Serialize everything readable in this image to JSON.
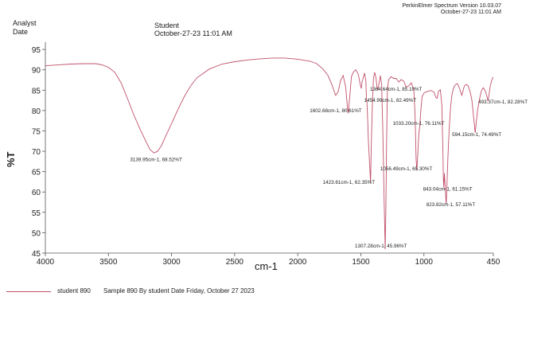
{
  "header": {
    "left_line1": "Analyst",
    "left_line2": "Date",
    "center_line1": "Student",
    "center_line2": "October-27-23 11:01 AM",
    "right_line1": "PerkinElmer Spectrum Version 10.03.07",
    "right_line2": "October-27-23 11:01 AM"
  },
  "chart_data": {
    "type": "line",
    "ylabel": "%T",
    "xlabel": "cm-1",
    "xlim": [
      4000,
      450
    ],
    "ylim": [
      45,
      96
    ],
    "x_ticks": [
      {
        "value": 4000,
        "label": "4000"
      },
      {
        "value": 3500,
        "label": "3500"
      },
      {
        "value": 3000,
        "label": "3000"
      },
      {
        "value": 2500,
        "label": "2500"
      },
      {
        "value": 2000,
        "label": "2000"
      },
      {
        "value": 1500,
        "label": "1500"
      },
      {
        "value": 1000,
        "label": "1000"
      },
      {
        "value": 450,
        "label": "450"
      }
    ],
    "y_ticks": [
      {
        "value": 95,
        "label": "95"
      },
      {
        "value": 90,
        "label": "90"
      },
      {
        "value": 85,
        "label": "85"
      },
      {
        "value": 80,
        "label": "80"
      },
      {
        "value": 75,
        "label": "75"
      },
      {
        "value": 70,
        "label": "70"
      },
      {
        "value": 65,
        "label": "65"
      },
      {
        "value": 60,
        "label": "60"
      },
      {
        "value": 55,
        "label": "55"
      },
      {
        "value": 50,
        "label": "50"
      },
      {
        "value": 45,
        "label": "45"
      }
    ],
    "series": [
      {
        "name": "student 890",
        "color": "#c0506a",
        "points": [
          [
            4000,
            91.0
          ],
          [
            3900,
            91.2
          ],
          [
            3800,
            91.4
          ],
          [
            3700,
            91.5
          ],
          [
            3600,
            91.5
          ],
          [
            3550,
            91.2
          ],
          [
            3500,
            90.6
          ],
          [
            3450,
            89.4
          ],
          [
            3400,
            86.8
          ],
          [
            3350,
            83.0
          ],
          [
            3300,
            79.0
          ],
          [
            3250,
            75.5
          ],
          [
            3200,
            72.2
          ],
          [
            3170,
            70.4
          ],
          [
            3140,
            69.6
          ],
          [
            3110,
            70.0
          ],
          [
            3080,
            71.4
          ],
          [
            3050,
            73.5
          ],
          [
            3000,
            76.8
          ],
          [
            2950,
            80.2
          ],
          [
            2900,
            83.4
          ],
          [
            2850,
            86.0
          ],
          [
            2800,
            88.0
          ],
          [
            2700,
            90.2
          ],
          [
            2600,
            91.4
          ],
          [
            2500,
            92.0
          ],
          [
            2400,
            92.4
          ],
          [
            2300,
            92.7
          ],
          [
            2200,
            92.9
          ],
          [
            2100,
            92.9
          ],
          [
            2000,
            92.6
          ],
          [
            1900,
            92.1
          ],
          [
            1850,
            91.5
          ],
          [
            1800,
            90.2
          ],
          [
            1760,
            88.6
          ],
          [
            1730,
            86.4
          ],
          [
            1700,
            83.7
          ],
          [
            1680,
            84.6
          ],
          [
            1660,
            87.4
          ],
          [
            1640,
            88.6
          ],
          [
            1620,
            85.8
          ],
          [
            1605,
            80.5
          ],
          [
            1600,
            79.3
          ],
          [
            1596,
            80.8
          ],
          [
            1585,
            84.4
          ],
          [
            1575,
            88.3
          ],
          [
            1560,
            89.4
          ],
          [
            1540,
            90.0
          ],
          [
            1520,
            88.9
          ],
          [
            1505,
            86.4
          ],
          [
            1497,
            85.4
          ],
          [
            1490,
            87.1
          ],
          [
            1470,
            89.2
          ],
          [
            1460,
            87.2
          ],
          [
            1455,
            82.5
          ],
          [
            1452,
            82.3
          ],
          [
            1445,
            77.2
          ],
          [
            1440,
            72.3
          ],
          [
            1430,
            66.5
          ],
          [
            1423,
            62.4
          ],
          [
            1418,
            70.5
          ],
          [
            1410,
            80.4
          ],
          [
            1400,
            87.8
          ],
          [
            1390,
            89.4
          ],
          [
            1380,
            88.0
          ],
          [
            1372,
            85.8
          ],
          [
            1364,
            85.1
          ],
          [
            1356,
            86.6
          ],
          [
            1345,
            88.6
          ],
          [
            1335,
            86.3
          ],
          [
            1325,
            74.3
          ],
          [
            1315,
            57.4
          ],
          [
            1307,
            45.96
          ],
          [
            1302,
            55.5
          ],
          [
            1296,
            71.8
          ],
          [
            1290,
            84.6
          ],
          [
            1280,
            87.6
          ],
          [
            1260,
            88.3
          ],
          [
            1240,
            87.9
          ],
          [
            1220,
            87.9
          ],
          [
            1200,
            87.0
          ],
          [
            1180,
            87.6
          ],
          [
            1160,
            87.2
          ],
          [
            1140,
            85.7
          ],
          [
            1120,
            86.1
          ],
          [
            1100,
            86.8
          ],
          [
            1080,
            85.0
          ],
          [
            1070,
            78.6
          ],
          [
            1062,
            68.2
          ],
          [
            1056,
            65.3
          ],
          [
            1050,
            68.5
          ],
          [
            1040,
            74.3
          ],
          [
            1033,
            76.1
          ],
          [
            1025,
            79.8
          ],
          [
            1015,
            83.4
          ],
          [
            1000,
            84.3
          ],
          [
            980,
            84.6
          ],
          [
            960,
            84.8
          ],
          [
            940,
            84.9
          ],
          [
            920,
            84.5
          ],
          [
            905,
            83.2
          ],
          [
            895,
            83.0
          ],
          [
            885,
            84.7
          ],
          [
            870,
            85.1
          ],
          [
            858,
            81.3
          ],
          [
            850,
            70.3
          ],
          [
            846,
            63.2
          ],
          [
            843,
            61.15
          ],
          [
            838,
            64.6
          ],
          [
            832,
            61.5
          ],
          [
            826,
            57.9
          ],
          [
            823,
            57.11
          ],
          [
            818,
            61.0
          ],
          [
            810,
            68.5
          ],
          [
            800,
            75.4
          ],
          [
            790,
            80.4
          ],
          [
            780,
            83.5
          ],
          [
            770,
            85.1
          ],
          [
            760,
            85.9
          ],
          [
            748,
            86.4
          ],
          [
            735,
            86.6
          ],
          [
            720,
            85.6
          ],
          [
            710,
            84.6
          ],
          [
            700,
            83.7
          ],
          [
            690,
            84.8
          ],
          [
            680,
            86.0
          ],
          [
            665,
            86.4
          ],
          [
            650,
            86.1
          ],
          [
            635,
            84.7
          ],
          [
            620,
            82.6
          ],
          [
            608,
            79.0
          ],
          [
            600,
            76.4
          ],
          [
            594,
            74.5
          ],
          [
            588,
            76.3
          ],
          [
            575,
            80.0
          ],
          [
            560,
            82.8
          ],
          [
            545,
            84.8
          ],
          [
            530,
            85.6
          ],
          [
            515,
            84.9
          ],
          [
            500,
            83.4
          ],
          [
            493,
            82.3
          ],
          [
            486,
            83.5
          ],
          [
            475,
            85.9
          ],
          [
            465,
            87.2
          ],
          [
            455,
            88.0
          ],
          [
            450,
            88.2
          ]
        ]
      }
    ],
    "peak_labels": [
      {
        "text": "3139.95cm-1, 68.52%T",
        "x": 3139.95,
        "y": 68.52,
        "anchor": "start"
      },
      {
        "text": "1364.64cm-1, 85.10%T",
        "x": 1364.64,
        "y": 85.1,
        "anchor": "start"
      },
      {
        "text": "1454.99cm-1, 82.49%T",
        "x": 1454.99,
        "y": 82.49,
        "anchor": "start"
      },
      {
        "text": "1602.68cm-1, 80.61%T",
        "x": 1602.68,
        "y": 80.61,
        "anchor": "start"
      },
      {
        "text": "1033.20cm-1, 76.11%T",
        "x": 1033.2,
        "y": 76.11,
        "anchor": "start"
      },
      {
        "text": "493.37cm-1, 82.28%T",
        "x": 493.37,
        "y": 82.28,
        "anchor": "start"
      },
      {
        "text": "594.15cm-1, 74.49%T",
        "x": 594.15,
        "y": 74.49,
        "anchor": "start"
      },
      {
        "text": "1056.49cm-1, 65.30%T",
        "x": 1056.49,
        "y": 65.3,
        "anchor": "start"
      },
      {
        "text": "1423.61cm-1, 62.35%T",
        "x": 1423.61,
        "y": 62.35,
        "anchor": "start"
      },
      {
        "text": "843.04cm-1, 61.15%T",
        "x": 843.04,
        "y": 61.15,
        "anchor": "start"
      },
      {
        "text": "823.82cm-1, 57.11%T",
        "x": 823.82,
        "y": 57.11,
        "anchor": "start"
      },
      {
        "text": "1307.28cm-1, 45.96%T",
        "x": 1307.28,
        "y": 45.96,
        "anchor": "start"
      }
    ]
  },
  "legend": {
    "color": "#c0506a",
    "name": "student 890",
    "description": "Sample 890 By student Date Friday, October 27 2023"
  }
}
